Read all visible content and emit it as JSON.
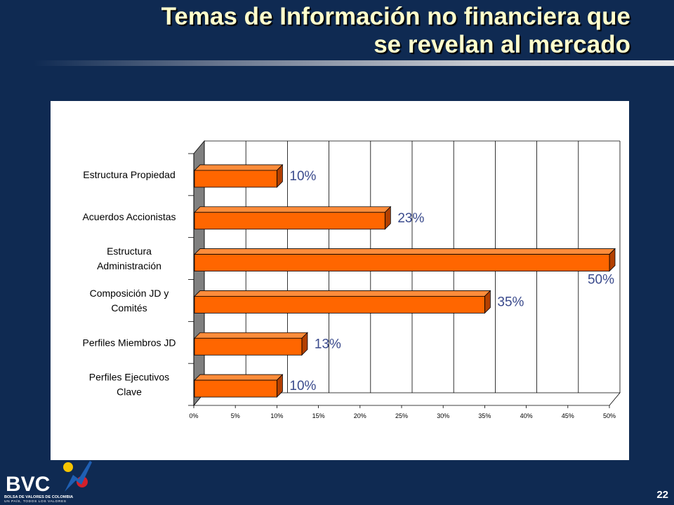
{
  "slide": {
    "title_line1": "Temas de Información no financiera que",
    "title_line2": "se revelan al mercado",
    "page_number": "22"
  },
  "logo": {
    "text": "BVC",
    "tagline": "BOLSA DE VALORES DE COLOMBIA",
    "subtagline": "UN PAÍS, TODOS LOS VALORES"
  },
  "colors": {
    "background": "#0f2a52",
    "bar_face": "#ff6600",
    "bar_top": "#ff8c3a",
    "bar_side": "#b34000",
    "data_label": "#3a4a8c",
    "title": "#ffffcc"
  },
  "chart_data": {
    "type": "bar",
    "orientation": "horizontal",
    "style": "3d",
    "categories": [
      [
        "Estructura Propiedad"
      ],
      [
        "Acuerdos Accionistas"
      ],
      [
        "Estructura",
        "Administración"
      ],
      [
        "Composición JD y",
        "Comités"
      ],
      [
        "Perfiles Miembros JD"
      ],
      [
        "Perfiles Ejecutivos",
        "Clave"
      ]
    ],
    "values": [
      10,
      23,
      50,
      35,
      13,
      10
    ],
    "data_labels": [
      "10%",
      "23%",
      "50%",
      "35%",
      "13%",
      "10%"
    ],
    "x_ticks": [
      "0%",
      "5%",
      "10%",
      "15%",
      "20%",
      "25%",
      "30%",
      "35%",
      "40%",
      "45%",
      "50%"
    ],
    "xlim": [
      0,
      50
    ],
    "grid": true,
    "legend": "none"
  }
}
